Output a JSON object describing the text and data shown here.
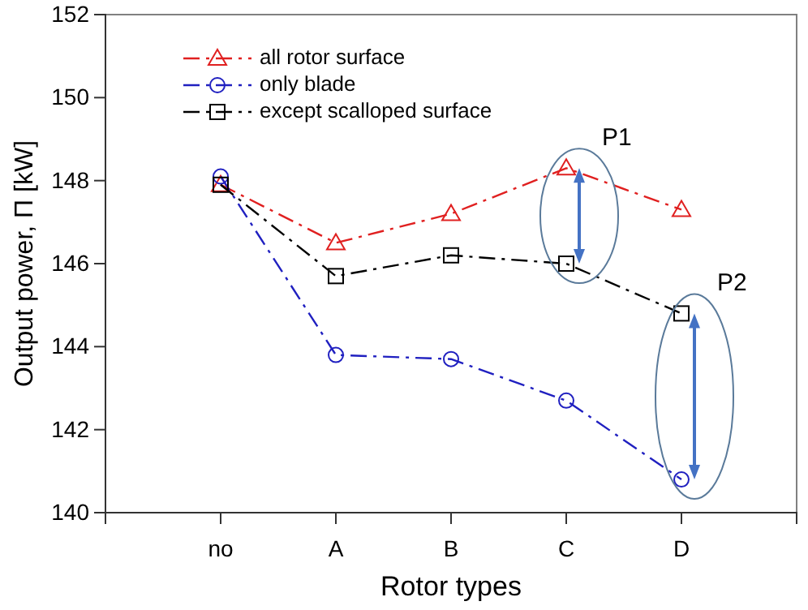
{
  "chart_data": {
    "type": "line",
    "xlabel": "Rotor types",
    "ylabel": "Output power, Π [kW]",
    "categories": [
      "no",
      "A",
      "B",
      "C",
      "D"
    ],
    "series": [
      {
        "name": "all rotor surface",
        "color": "#e02020",
        "marker": "triangle",
        "line_style": "dashed",
        "values": [
          147.9,
          146.5,
          147.2,
          148.3,
          147.3
        ]
      },
      {
        "name": "only blade",
        "color": "#2020c0",
        "marker": "circle",
        "line_style": "dashed",
        "values": [
          148.1,
          143.8,
          143.7,
          142.7,
          140.8
        ]
      },
      {
        "name": "except scalloped surface",
        "color": "#000000",
        "marker": "square",
        "line_style": "dashed",
        "values": [
          147.9,
          145.7,
          146.2,
          146.0,
          144.8
        ]
      }
    ],
    "ylim": [
      140,
      152
    ],
    "yticks": [
      140,
      142,
      144,
      146,
      148,
      150,
      152
    ],
    "grid": false,
    "legend": "top left",
    "annotations": [
      "P1",
      "P2"
    ]
  }
}
